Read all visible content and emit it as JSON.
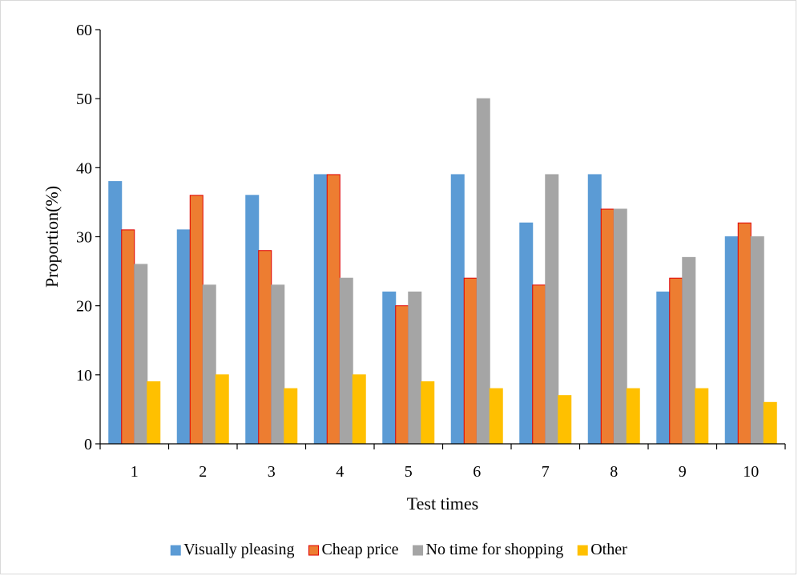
{
  "chart_data": {
    "type": "bar",
    "title": "",
    "xlabel": "Test times",
    "ylabel": "Proportion(%)",
    "ylim": [
      0,
      60
    ],
    "yticks": [
      0,
      10,
      20,
      30,
      40,
      50,
      60
    ],
    "categories": [
      "1",
      "2",
      "3",
      "4",
      "5",
      "6",
      "7",
      "8",
      "9",
      "10"
    ],
    "grid": false,
    "legend_position": "bottom",
    "series": [
      {
        "name": "Visually pleasing",
        "color": "#5B9BD5",
        "stroke": "#5B9BD5",
        "values": [
          38,
          31,
          36,
          39,
          22,
          39,
          32,
          39,
          22,
          30
        ]
      },
      {
        "name": "Cheap price",
        "color": "#ED7D31",
        "stroke": "#E00000",
        "values": [
          31,
          36,
          28,
          39,
          20,
          24,
          23,
          34,
          24,
          32
        ]
      },
      {
        "name": "No time for shopping",
        "color": "#A5A5A5",
        "stroke": "#A5A5A5",
        "values": [
          26,
          23,
          23,
          24,
          22,
          50,
          39,
          34,
          27,
          30
        ]
      },
      {
        "name": "Other",
        "color": "#FFC000",
        "stroke": "#FFC000",
        "values": [
          9,
          10,
          8,
          10,
          9,
          8,
          7,
          8,
          8,
          6
        ]
      }
    ]
  }
}
